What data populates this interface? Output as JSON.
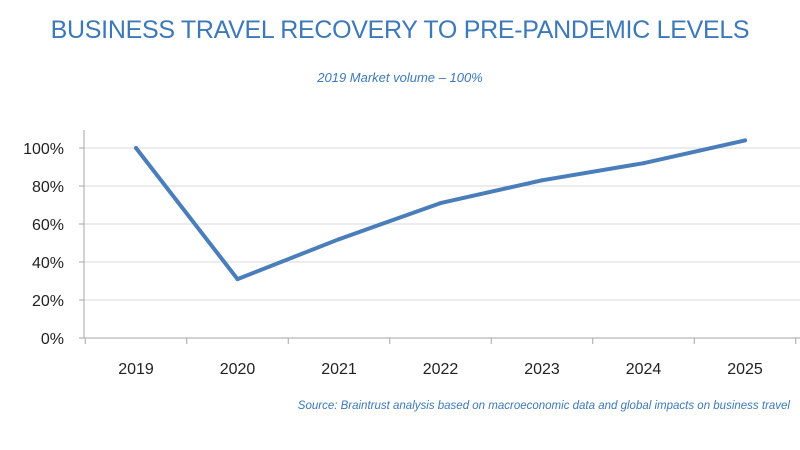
{
  "header": {
    "title": "BUSINESS TRAVEL RECOVERY TO PRE-PANDEMIC LEVELS",
    "subtitle": "2019 Market volume – 100%"
  },
  "footer": {
    "source": "Source: Braintrust analysis based on macroeconomic data and global impacts on business travel"
  },
  "chart_data": {
    "type": "line",
    "title": "BUSINESS TRAVEL RECOVERY TO PRE-PANDEMIC LEVELS",
    "subtitle": "2019 Market volume – 100%",
    "xlabel": "",
    "ylabel": "",
    "categories": [
      "2019",
      "2020",
      "2021",
      "2022",
      "2023",
      "2024",
      "2025"
    ],
    "series": [
      {
        "values": [
          100,
          31,
          52,
          71,
          83,
          92,
          104
        ]
      }
    ],
    "ylim": [
      0,
      110
    ],
    "yticks": [
      0,
      20,
      40,
      60,
      80,
      100
    ],
    "ytick_labels": [
      "0%",
      "20%",
      "40%",
      "60%",
      "80%",
      "100%"
    ],
    "grid": "horizontal",
    "legend": "none",
    "line_color": "#4a7ebb",
    "grid_color": "#d9d9d9",
    "axis_color": "#a6a6a6"
  }
}
